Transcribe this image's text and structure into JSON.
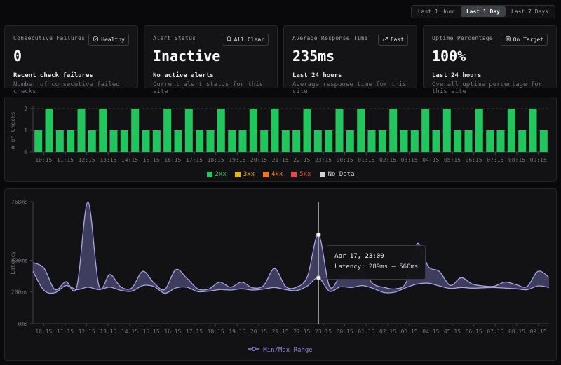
{
  "time_range": {
    "options": [
      {
        "label": "Last 1 Hour",
        "active": false
      },
      {
        "label": "Last 1 Day",
        "active": true
      },
      {
        "label": "Last 7 Days",
        "active": false
      }
    ]
  },
  "stats": [
    {
      "title": "Consecutive Failures",
      "badge": {
        "icon": "check-circle-icon",
        "label": "Healthy"
      },
      "value": "0",
      "subtitle": "Recent check failures",
      "description": "Number of consecutive failed checks"
    },
    {
      "title": "Alert Status",
      "badge": {
        "icon": "bell-icon",
        "label": "All Clear"
      },
      "value": "Inactive",
      "subtitle": "No active alerts",
      "description": "Current alert status for this site"
    },
    {
      "title": "Average Response Time",
      "badge": {
        "icon": "trending-up-icon",
        "label": "Fast"
      },
      "value": "235ms",
      "subtitle": "Last 24 hours",
      "description": "Average response time for this site"
    },
    {
      "title": "Uptime Percentage",
      "badge": {
        "icon": "target-icon",
        "label": "On Target"
      },
      "value": "100%",
      "subtitle": "Last 24 hours",
      "description": "Overall uptime percentage for this site"
    }
  ],
  "chart_data": [
    {
      "type": "bar",
      "ylabel": "# of Checks",
      "yticks": [
        0,
        1,
        2
      ],
      "ylim": [
        0,
        2
      ],
      "bar_color": "#22c55e",
      "x_labels": [
        "10:15",
        "11:15",
        "12:15",
        "13:15",
        "14:15",
        "15:15",
        "16:15",
        "17:15",
        "18:15",
        "19:15",
        "20:15",
        "21:15",
        "22:15",
        "23:15",
        "00:15",
        "01:15",
        "02:15",
        "03:15",
        "04:15",
        "05:15",
        "06:15",
        "07:15",
        "08:15",
        "09:15"
      ],
      "values": [
        1,
        2,
        1,
        1,
        2,
        1,
        2,
        1,
        1,
        2,
        1,
        1,
        2,
        1,
        2,
        1,
        1,
        2,
        1,
        1,
        2,
        1,
        2,
        1,
        1,
        2,
        1,
        1,
        2,
        1,
        2,
        1,
        1,
        2,
        1,
        1,
        2,
        1,
        2,
        1,
        1,
        2,
        1,
        1,
        2,
        1,
        2,
        1
      ],
      "legend": [
        {
          "label": "2xx",
          "color": "#22c55e"
        },
        {
          "label": "3xx",
          "color": "#eab308"
        },
        {
          "label": "4xx",
          "color": "#f97316"
        },
        {
          "label": "5xx",
          "color": "#ef4444"
        },
        {
          "label": "No Data",
          "color": "#d4d4d4"
        }
      ],
      "grid": "dashed-horizontal",
      "legend_position": "bottom-center"
    },
    {
      "type": "area",
      "name": "min-max-latency-band",
      "ylabel": "Latency",
      "ylim": [
        0,
        768
      ],
      "yticks": [
        {
          "v": 0,
          "label": "0ms"
        },
        {
          "v": 200,
          "label": "200ms"
        },
        {
          "v": 400,
          "label": "400ms"
        },
        {
          "v": 768,
          "label": "768ms"
        }
      ],
      "x_labels": [
        "10:15",
        "11:15",
        "12:15",
        "13:15",
        "14:15",
        "15:15",
        "16:15",
        "17:15",
        "18:15",
        "19:15",
        "20:15",
        "21:15",
        "22:15",
        "23:15",
        "00:15",
        "01:15",
        "02:15",
        "03:15",
        "04:15",
        "05:15",
        "06:15",
        "07:15",
        "08:15",
        "09:15"
      ],
      "stroke_color": "#a7a3e6",
      "fill_color": "#8884d8",
      "series": [
        {
          "name": "Min/Max Range",
          "points_min_max": [
            [
              330,
              385
            ],
            [
              210,
              350
            ],
            [
              195,
              215
            ],
            [
              240,
              265
            ],
            [
              215,
              235
            ],
            [
              230,
              768
            ],
            [
              215,
              240
            ],
            [
              230,
              310
            ],
            [
              210,
              232
            ],
            [
              205,
              225
            ],
            [
              240,
              330
            ],
            [
              235,
              258
            ],
            [
              192,
              215
            ],
            [
              225,
              340
            ],
            [
              230,
              288
            ],
            [
              202,
              220
            ],
            [
              205,
              218
            ],
            [
              215,
              262
            ],
            [
              212,
              230
            ],
            [
              220,
              262
            ],
            [
              212,
              226
            ],
            [
              218,
              240
            ],
            [
              228,
              348
            ],
            [
              215,
              235
            ],
            [
              208,
              230
            ],
            [
              238,
              298
            ],
            [
              289,
              560
            ],
            [
              205,
              235
            ],
            [
              232,
              300
            ],
            [
              228,
              310
            ],
            [
              240,
              330
            ],
            [
              222,
              250
            ],
            [
              196,
              228
            ],
            [
              200,
              220
            ],
            [
              228,
              262
            ],
            [
              250,
              505
            ],
            [
              255,
              360
            ],
            [
              238,
              330
            ],
            [
              222,
              242
            ],
            [
              228,
              290
            ],
            [
              224,
              250
            ],
            [
              226,
              238
            ],
            [
              228,
              236
            ],
            [
              224,
              262
            ],
            [
              220,
              246
            ],
            [
              214,
              234
            ],
            [
              238,
              330
            ],
            [
              228,
              292
            ]
          ]
        }
      ],
      "tooltip": {
        "title": "Apr 17, 23:00",
        "value": "Latency: 289ms – 560ms",
        "point_index": 26,
        "min": 289,
        "max": 560
      },
      "legend_label": "Min/Max Range",
      "legend_position": "bottom-center",
      "grid": "off"
    }
  ],
  "colors": {
    "background": "#09090b",
    "panel": "#121214",
    "axis": "#3f3f46",
    "tick_text": "#71717a",
    "bar_green": "#22c55e",
    "band_stroke": "#a7a3e6",
    "band_fill": "#8884d8",
    "cursor": "#d4d4d8"
  }
}
